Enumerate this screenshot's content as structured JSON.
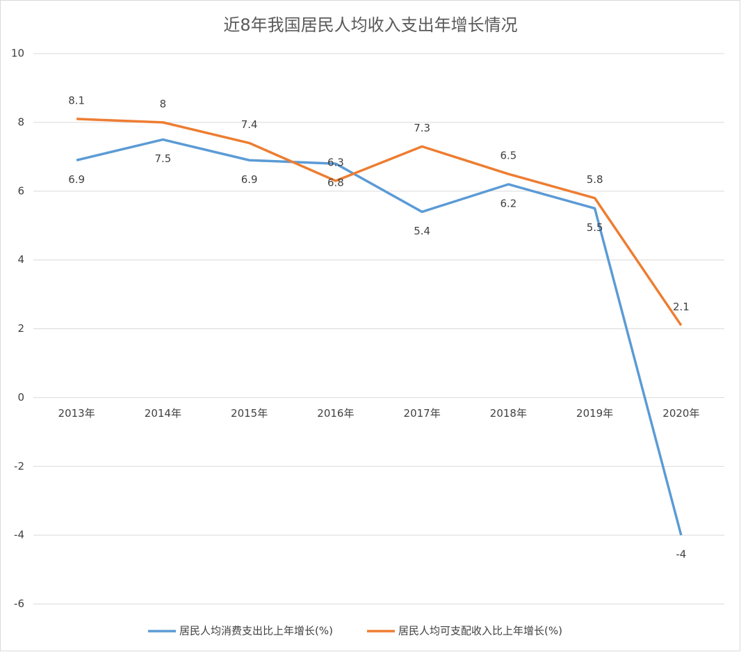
{
  "chart_data": {
    "type": "line",
    "title": "近8年我国居民人均收入支出年增长情况",
    "categories": [
      "2013年",
      "2014年",
      "2015年",
      "2016年",
      "2017年",
      "2018年",
      "2019年",
      "2020年"
    ],
    "series": [
      {
        "name": "居民人均消费支出比上年增长(%)",
        "color": "#5b9bd5",
        "values": [
          6.9,
          7.5,
          6.9,
          6.8,
          5.4,
          6.2,
          5.5,
          -4
        ]
      },
      {
        "name": "居民人均可支配收入比上年增长(%)",
        "color": "#ed7d31",
        "values": [
          8.1,
          8,
          7.4,
          6.3,
          7.3,
          6.5,
          5.8,
          2.1
        ]
      }
    ],
    "ylim": [
      -6,
      10
    ],
    "yticks": [
      -6,
      -4,
      -2,
      0,
      2,
      4,
      6,
      8,
      10
    ],
    "grid": true,
    "legend": "bottom"
  }
}
